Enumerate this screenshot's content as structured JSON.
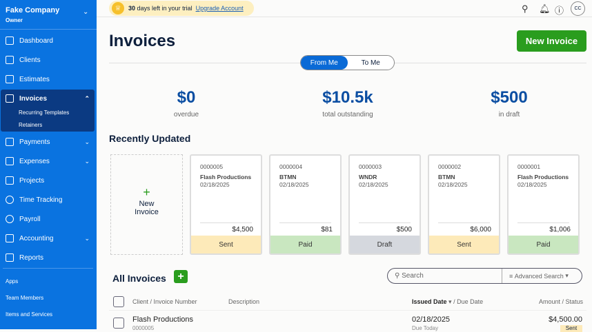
{
  "sidebar": {
    "company": "Fake Company",
    "role": "Owner",
    "items": [
      {
        "label": "Dashboard"
      },
      {
        "label": "Clients"
      },
      {
        "label": "Estimates"
      },
      {
        "label": "Invoices"
      },
      {
        "label": "Payments"
      },
      {
        "label": "Expenses"
      },
      {
        "label": "Projects"
      },
      {
        "label": "Time Tracking"
      },
      {
        "label": "Payroll"
      },
      {
        "label": "Accounting"
      },
      {
        "label": "Reports"
      }
    ],
    "invoice_sub": [
      "Recurring Templates",
      "Retainers"
    ],
    "secondary": [
      "Apps",
      "Team Members",
      "Items and Services"
    ]
  },
  "header": {
    "trial_days": "30",
    "trial_text": "days left in your trial",
    "upgrade": "Upgrade Account",
    "avatar": "CC"
  },
  "page": {
    "title": "Invoices",
    "new_invoice": "New Invoice",
    "tabs": [
      "From Me",
      "To Me"
    ],
    "active_tab": "From Me"
  },
  "stats": [
    {
      "value": "$0",
      "label": "overdue"
    },
    {
      "value": "$10.5k",
      "label": "total outstanding"
    },
    {
      "value": "$500",
      "label": "in draft"
    }
  ],
  "recent": {
    "title": "Recently Updated",
    "new_card": "New Invoice",
    "cards": [
      {
        "number": "0000005",
        "client": "Flash Productions",
        "date": "02/18/2025",
        "amount": "$4,500",
        "status": "Sent",
        "color": "#fdeab9"
      },
      {
        "number": "0000004",
        "client": "BTMN",
        "date": "02/18/2025",
        "amount": "$81",
        "status": "Paid",
        "color": "#c9e7c0"
      },
      {
        "number": "0000003",
        "client": "WNDR",
        "date": "02/18/2025",
        "amount": "$500",
        "status": "Draft",
        "color": "#d5d8de"
      },
      {
        "number": "0000002",
        "client": "BTMN",
        "date": "02/18/2025",
        "amount": "$6,000",
        "status": "Sent",
        "color": "#fdeab9"
      },
      {
        "number": "0000001",
        "client": "Flash Productions",
        "date": "02/18/2025",
        "amount": "$1,006",
        "status": "Paid",
        "color": "#c9e7c0"
      }
    ]
  },
  "all": {
    "title": "All Invoices",
    "search_placeholder": "Search",
    "advanced": "Advanced Search",
    "columns": {
      "client": "Client / Invoice Number",
      "description": "Description",
      "issued": "Issued Date",
      "due": "/ Due Date",
      "amount": "Amount / Status"
    },
    "rows": [
      {
        "client": "Flash Productions",
        "number": "0000005",
        "issued": "02/18/2025",
        "due": "Due Today",
        "amount": "$4,500.00",
        "status": "Sent"
      }
    ]
  }
}
